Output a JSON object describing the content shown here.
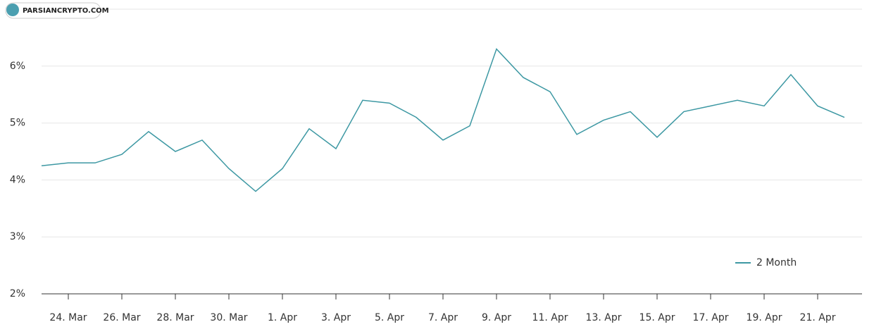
{
  "watermark": "PARSIANCRYPTO.COM",
  "chart_data": {
    "type": "line",
    "categories": [
      null,
      "24. Mar",
      null,
      "26. Mar",
      null,
      "28. Mar",
      null,
      "30. Mar",
      null,
      "1. Apr",
      null,
      "3. Apr",
      null,
      "5. Apr",
      null,
      "7. Apr",
      null,
      "9. Apr",
      null,
      "11. Apr",
      null,
      "13. Apr",
      null,
      "15. Apr",
      null,
      "17. Apr",
      null,
      "19. Apr",
      null,
      "21. Apr",
      null
    ],
    "series": [
      {
        "name": "2 Month",
        "color": "#3d98a3",
        "values": [
          4.25,
          4.3,
          4.3,
          4.45,
          4.85,
          4.5,
          4.7,
          4.2,
          3.8,
          4.2,
          4.9,
          4.55,
          5.4,
          5.35,
          5.1,
          4.7,
          4.95,
          6.3,
          5.8,
          5.55,
          4.8,
          5.05,
          5.2,
          4.75,
          5.2,
          5.3,
          5.4,
          5.3,
          5.85,
          5.3,
          5.1
        ]
      }
    ],
    "ylim": [
      2,
      7
    ],
    "yticks": [
      {
        "value": 2,
        "label": "2%"
      },
      {
        "value": 3,
        "label": "3%"
      },
      {
        "value": 4,
        "label": "4%"
      },
      {
        "value": 5,
        "label": "5%"
      },
      {
        "value": 6,
        "label": "6%"
      }
    ],
    "grid": true,
    "legend": "bottom-right"
  }
}
